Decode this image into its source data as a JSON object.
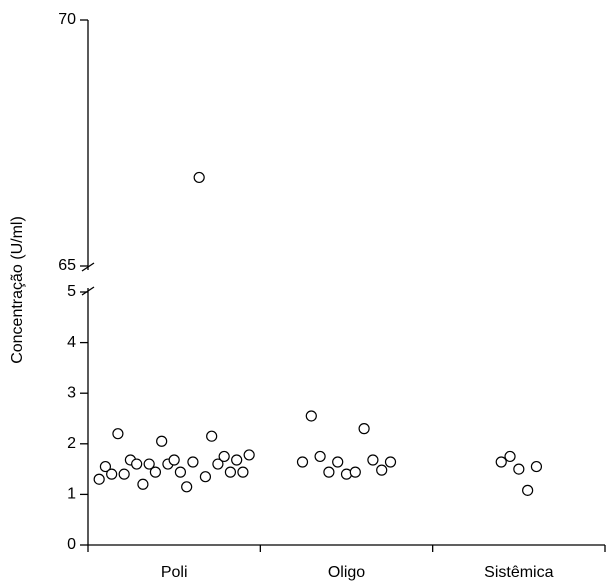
{
  "chart_data": {
    "type": "strip",
    "y_label": "Concentração (U/ml)",
    "categories": [
      "Poli",
      "Oligo",
      "Sistêmica"
    ],
    "values": [
      [
        1.3,
        1.55,
        1.4,
        2.2,
        1.4,
        1.68,
        1.6,
        1.2,
        1.6,
        1.44,
        2.05,
        1.6,
        1.68,
        1.44,
        1.15,
        1.64,
        66.8,
        1.35,
        2.15,
        1.6,
        1.75,
        1.44,
        1.68,
        1.44,
        1.78
      ],
      [
        1.64,
        2.55,
        1.75,
        1.44,
        1.64,
        1.4,
        1.44,
        2.3,
        1.68,
        1.48,
        1.64
      ],
      [
        1.64,
        1.75,
        1.5,
        1.08,
        1.55
      ]
    ],
    "ylim": [
      0,
      70
    ],
    "axis_break": [
      5,
      65
    ],
    "yticks": [
      0,
      1,
      2,
      3,
      4,
      5,
      65,
      70
    ]
  }
}
